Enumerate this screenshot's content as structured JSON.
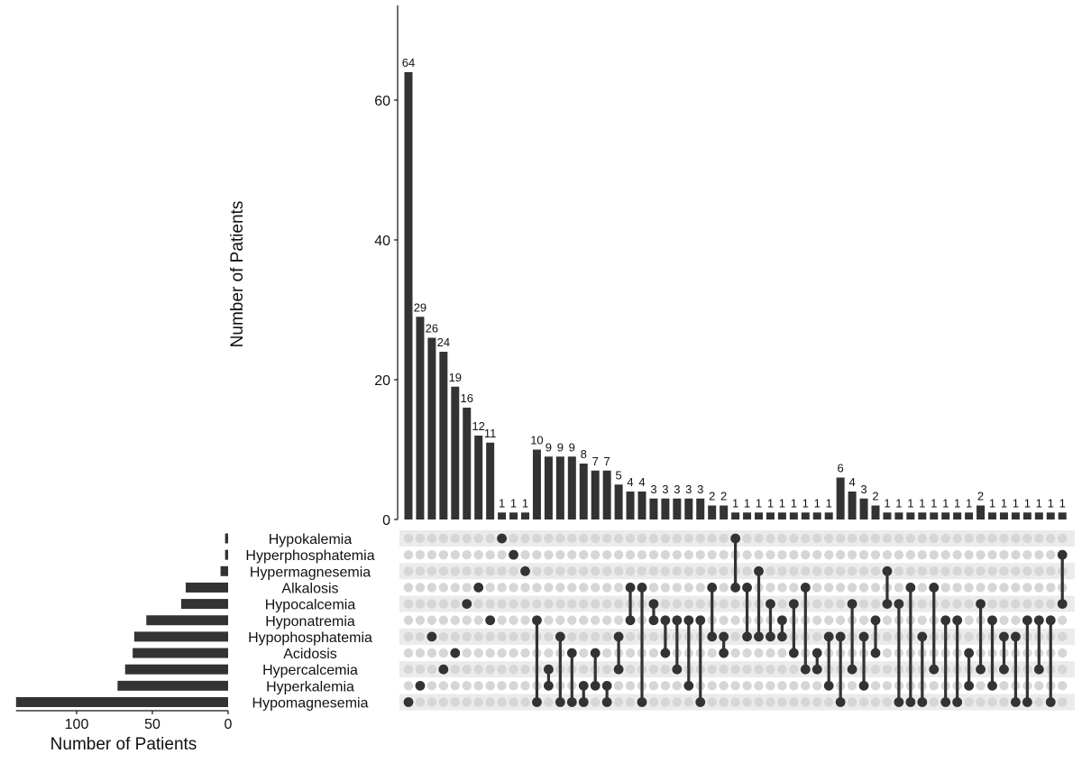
{
  "chart_data": {
    "type": "upset",
    "title": "",
    "intersection_axis": {
      "label": "Number of Patients",
      "ylim": [
        0,
        74
      ],
      "ticks": [
        "0",
        "20",
        "40",
        "60"
      ]
    },
    "set_size_axis": {
      "label": "Number of Patients",
      "xlim": [
        0,
        140
      ],
      "ticks": [
        "100",
        "50",
        "0"
      ]
    },
    "sets": [
      {
        "name": "Hypokalemia",
        "size": 2
      },
      {
        "name": "Hyperphosphatemia",
        "size": 2
      },
      {
        "name": "Hypermagnesemia",
        "size": 5
      },
      {
        "name": "Alkalosis",
        "size": 28
      },
      {
        "name": "Hypocalcemia",
        "size": 31
      },
      {
        "name": "Hyponatremia",
        "size": 54
      },
      {
        "name": "Hypophosphatemia",
        "size": 62
      },
      {
        "name": "Acidosis",
        "size": 63
      },
      {
        "name": "Hypercalcemia",
        "size": 68
      },
      {
        "name": "Hyperkalemia",
        "size": 73
      },
      {
        "name": "Hypomagnesemia",
        "size": 140
      }
    ],
    "intersections": [
      {
        "count": 64,
        "label": "64",
        "sets": [
          10
        ]
      },
      {
        "count": 29,
        "label": "29",
        "sets": [
          9
        ]
      },
      {
        "count": 26,
        "label": "26",
        "sets": [
          6
        ]
      },
      {
        "count": 24,
        "label": "24",
        "sets": [
          8
        ]
      },
      {
        "count": 19,
        "label": "19",
        "sets": [
          7
        ]
      },
      {
        "count": 16,
        "label": "16",
        "sets": [
          4
        ]
      },
      {
        "count": 12,
        "label": "12",
        "sets": [
          3
        ]
      },
      {
        "count": 11,
        "label": "11",
        "sets": [
          5
        ]
      },
      {
        "count": 1,
        "label": "1",
        "sets": [
          0
        ]
      },
      {
        "count": 1,
        "label": "1",
        "sets": [
          1
        ]
      },
      {
        "count": 1,
        "label": "1",
        "sets": [
          2
        ]
      },
      {
        "count": 10,
        "label": "10",
        "sets": [
          5,
          10
        ]
      },
      {
        "count": 9,
        "label": "9",
        "sets": [
          8,
          9
        ]
      },
      {
        "count": 9,
        "label": "9",
        "sets": [
          6,
          10
        ]
      },
      {
        "count": 9,
        "label": "9",
        "sets": [
          7,
          10
        ]
      },
      {
        "count": 8,
        "label": "8",
        "sets": [
          9,
          10
        ]
      },
      {
        "count": 7,
        "label": "7",
        "sets": [
          7,
          9
        ]
      },
      {
        "count": 7,
        "label": "7",
        "sets": [
          9,
          10
        ]
      },
      {
        "count": 5,
        "label": "5",
        "sets": [
          6,
          8
        ]
      },
      {
        "count": 4,
        "label": "4",
        "sets": [
          3,
          5
        ]
      },
      {
        "count": 4,
        "label": "4",
        "sets": [
          3,
          10
        ]
      },
      {
        "count": 3,
        "label": "3",
        "sets": [
          4,
          5
        ]
      },
      {
        "count": 3,
        "label": "3",
        "sets": [
          5,
          7
        ]
      },
      {
        "count": 3,
        "label": "3",
        "sets": [
          5,
          8
        ]
      },
      {
        "count": 3,
        "label": "3",
        "sets": [
          5,
          9
        ]
      },
      {
        "count": 3,
        "label": "3",
        "sets": [
          5,
          10
        ]
      },
      {
        "count": 2,
        "label": "2",
        "sets": [
          3,
          6
        ]
      },
      {
        "count": 2,
        "label": "2",
        "sets": [
          6,
          7
        ]
      },
      {
        "count": 1,
        "label": "1",
        "sets": [
          0,
          3
        ]
      },
      {
        "count": 1,
        "label": "1",
        "sets": [
          3,
          6
        ]
      },
      {
        "count": 1,
        "label": "1",
        "sets": [
          2,
          6
        ]
      },
      {
        "count": 1,
        "label": "1",
        "sets": [
          4,
          6
        ]
      },
      {
        "count": 1,
        "label": "1",
        "sets": [
          5,
          6
        ]
      },
      {
        "count": 1,
        "label": "1",
        "sets": [
          4,
          7
        ]
      },
      {
        "count": 1,
        "label": "1",
        "sets": [
          3,
          8
        ]
      },
      {
        "count": 1,
        "label": "1",
        "sets": [
          7,
          8
        ]
      },
      {
        "count": 1,
        "label": "1",
        "sets": [
          6,
          9
        ]
      },
      {
        "count": 6,
        "label": "6",
        "sets": [
          6,
          10
        ]
      },
      {
        "count": 4,
        "label": "4",
        "sets": [
          4,
          8
        ]
      },
      {
        "count": 3,
        "label": "3",
        "sets": [
          6,
          9
        ]
      },
      {
        "count": 2,
        "label": "2",
        "sets": [
          5,
          7
        ]
      },
      {
        "count": 1,
        "label": "1",
        "sets": [
          2,
          4
        ]
      },
      {
        "count": 1,
        "label": "1",
        "sets": [
          4,
          10
        ]
      },
      {
        "count": 1,
        "label": "1",
        "sets": [
          3,
          10
        ]
      },
      {
        "count": 1,
        "label": "1",
        "sets": [
          6,
          10
        ]
      },
      {
        "count": 1,
        "label": "1",
        "sets": [
          3,
          8
        ]
      },
      {
        "count": 1,
        "label": "1",
        "sets": [
          5,
          10
        ]
      },
      {
        "count": 1,
        "label": "1",
        "sets": [
          5,
          10
        ]
      },
      {
        "count": 1,
        "label": "1",
        "sets": [
          7,
          9
        ]
      },
      {
        "count": 2,
        "label": "2",
        "sets": [
          4,
          8
        ]
      },
      {
        "count": 1,
        "label": "1",
        "sets": [
          5,
          9
        ]
      },
      {
        "count": 1,
        "label": "1",
        "sets": [
          6,
          8
        ]
      },
      {
        "count": 1,
        "label": "1",
        "sets": [
          6,
          10
        ]
      },
      {
        "count": 1,
        "label": "1",
        "sets": [
          5,
          10
        ]
      },
      {
        "count": 1,
        "label": "1",
        "sets": [
          5,
          8
        ]
      },
      {
        "count": 1,
        "label": "1",
        "sets": [
          5,
          10
        ]
      },
      {
        "count": 1,
        "label": "1",
        "sets": [
          1,
          4
        ]
      }
    ]
  },
  "colors": {
    "bar": "#333333",
    "dot_active": "#333333",
    "dot_inactive": "#d6d6d6",
    "band": "#ebebeb",
    "axis": "#111111"
  }
}
